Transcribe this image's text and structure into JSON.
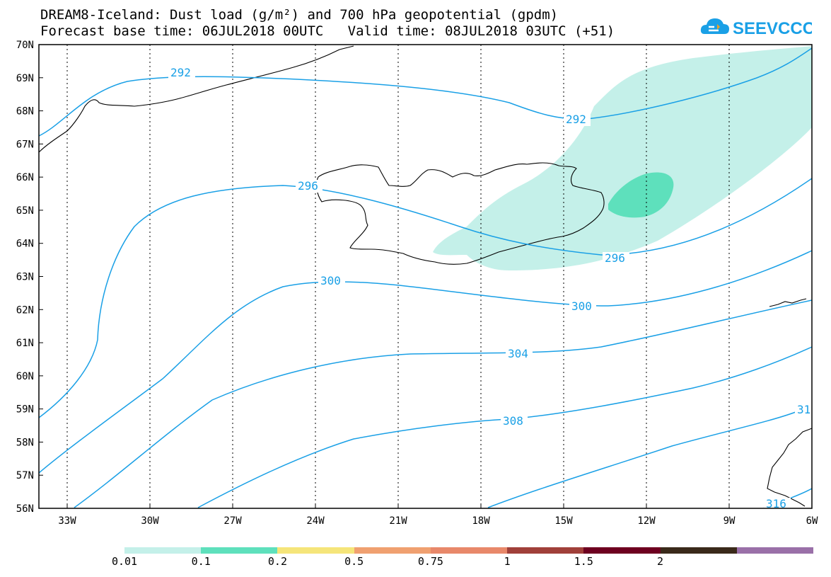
{
  "title": {
    "line1": "DREAM8-Iceland: Dust load (g/m²) and 700 hPa geopotential (gpdm)",
    "line2": "Forecast base time: 06JUL2018 00UTC   Valid time: 08JUL2018 03UTC (+51)"
  },
  "logo": {
    "text": "SEEVCCC",
    "icon": "cloud-icon",
    "color": "#1aa0e6"
  },
  "axes": {
    "lat_labels": [
      "70N",
      "69N",
      "68N",
      "67N",
      "66N",
      "65N",
      "64N",
      "63N",
      "62N",
      "61N",
      "60N",
      "59N",
      "58N",
      "57N",
      "56N"
    ],
    "lon_labels": [
      "33W",
      "30W",
      "27W",
      "24W",
      "21W",
      "18W",
      "15W",
      "12W",
      "9W",
      "6W"
    ]
  },
  "contours": {
    "color": "#1aa0e6",
    "labels": [
      "292",
      "292",
      "296",
      "296",
      "300",
      "300",
      "304",
      "308",
      "31",
      "316"
    ]
  },
  "dust_colors": {
    "low": "#c4f0e9",
    "mid": "#5ee0bc"
  },
  "legend": {
    "colors": [
      "#c4f0e9",
      "#5ee0bc",
      "#f5e57a",
      "#f0a070",
      "#e8886a",
      "#a0403a",
      "#6e0020",
      "#3a2a1a",
      "#9a70a8"
    ],
    "labels": [
      "0.01",
      "0.1",
      "0.2",
      "0.5",
      "0.75",
      "1",
      "1.5",
      "2"
    ]
  }
}
